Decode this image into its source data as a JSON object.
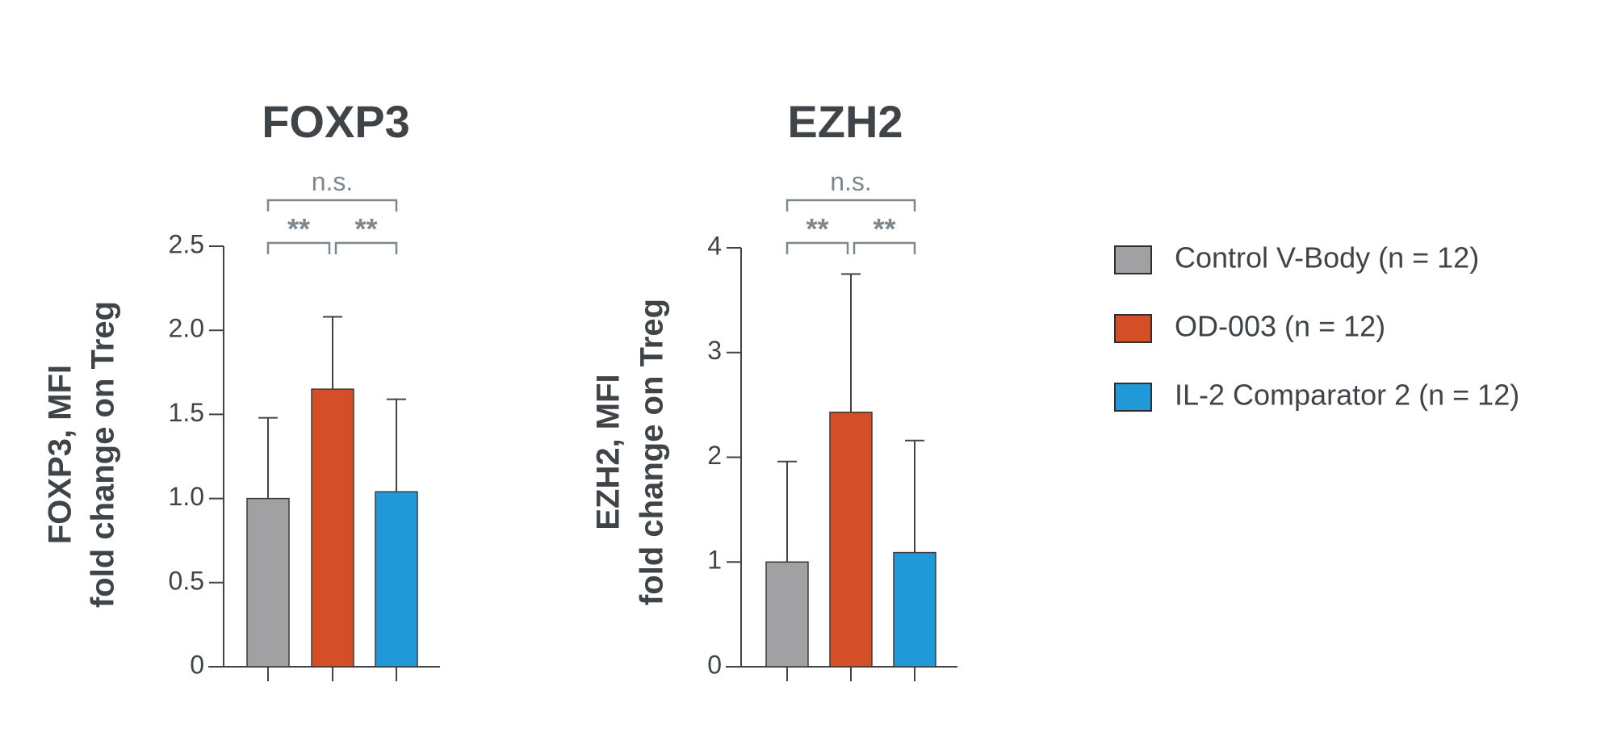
{
  "legend": [
    {
      "label": "Control V-Body (n = 12)",
      "color": "#a1a1a4"
    },
    {
      "label": "OD-003 (n = 12)",
      "color": "#d44f27"
    },
    {
      "label": "IL-2 Comparator 2 (n = 12)",
      "color": "#2199d8"
    }
  ],
  "chart_data": [
    {
      "type": "bar",
      "title": "FOXP3",
      "ylabel_lines": [
        "FOXP3, MFI",
        "fold change on Treg"
      ],
      "categories": [
        "Control V-Body (n = 12)",
        "OD-003 (n = 12)",
        "IL-2 Comparator 2 (n = 12)"
      ],
      "values": [
        1.0,
        1.65,
        1.04
      ],
      "errors": [
        0.48,
        0.43,
        0.55
      ],
      "ylim": [
        0,
        2.5
      ],
      "yticks": [
        0,
        0.5,
        1.0,
        1.5,
        2.0,
        2.5
      ],
      "ytick_labels": [
        "0",
        "0.5",
        "1.0",
        "1.5",
        "2.0",
        "2.5"
      ],
      "significance": [
        {
          "from": 0,
          "to": 1,
          "label": "**",
          "level": 0
        },
        {
          "from": 1,
          "to": 2,
          "label": "**",
          "level": 0
        },
        {
          "from": 0,
          "to": 2,
          "label": "n.s.",
          "level": 1
        }
      ]
    },
    {
      "type": "bar",
      "title": "EZH2",
      "ylabel_lines": [
        "EZH2, MFI",
        "fold change on Treg"
      ],
      "categories": [
        "Control V-Body (n = 12)",
        "OD-003 (n = 12)",
        "IL-2 Comparator 2 (n = 12)"
      ],
      "values": [
        1.0,
        2.43,
        1.09
      ],
      "errors": [
        0.96,
        1.32,
        1.07
      ],
      "ylim": [
        0,
        4
      ],
      "yticks": [
        0,
        1,
        2,
        3,
        4
      ],
      "ytick_labels": [
        "0",
        "1",
        "2",
        "3",
        "4"
      ],
      "significance": [
        {
          "from": 0,
          "to": 1,
          "label": "**",
          "level": 0
        },
        {
          "from": 1,
          "to": 2,
          "label": "**",
          "level": 0
        },
        {
          "from": 0,
          "to": 2,
          "label": "n.s.",
          "level": 1
        }
      ]
    }
  ]
}
